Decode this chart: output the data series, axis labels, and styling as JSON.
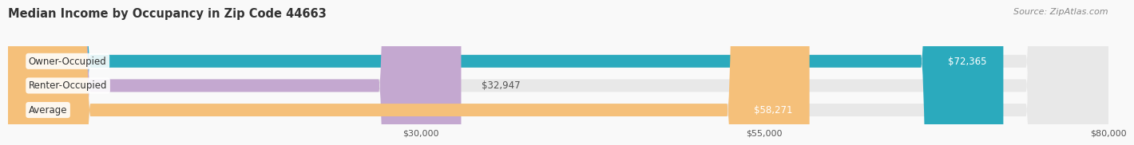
{
  "title": "Median Income by Occupancy in Zip Code 44663",
  "source": "Source: ZipAtlas.com",
  "categories": [
    "Owner-Occupied",
    "Renter-Occupied",
    "Average"
  ],
  "values": [
    72365,
    32947,
    58271
  ],
  "bar_colors": [
    "#2BAABD",
    "#C4A8D0",
    "#F5C07A"
  ],
  "bar_bg_color": "#E8E8E8",
  "value_labels": [
    "$72,365",
    "$32,947",
    "$58,271"
  ],
  "xmin": 0,
  "xmax": 80000,
  "xticks": [
    30000,
    55000,
    80000
  ],
  "xtick_labels": [
    "$30,000",
    "$55,000",
    "$80,000"
  ],
  "title_fontsize": 10.5,
  "source_fontsize": 8,
  "bar_label_fontsize": 8.5,
  "category_fontsize": 8.5,
  "tick_fontsize": 8,
  "bar_height": 0.52,
  "background_color": "#F9F9F9",
  "grid_color": "#CCCCCC"
}
